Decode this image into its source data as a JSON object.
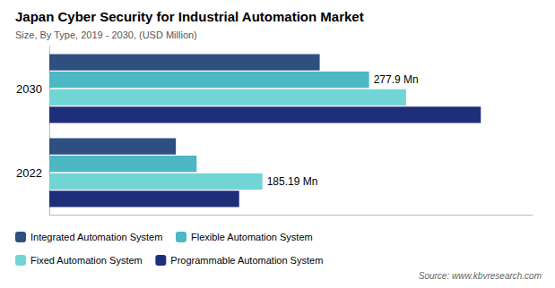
{
  "chart_data": {
    "type": "bar",
    "orientation": "horizontal",
    "title": "Japan Cyber Security for Industrial Automation Market",
    "subtitle": "Size, By Type, 2019 - 2030, (USD Million)",
    "source": "Source: www.kbvresearch.com",
    "categories": [
      "2030",
      "2022"
    ],
    "series": [
      {
        "name": "Integrated Automation System",
        "color": "#2e5080",
        "values": [
          235,
          110
        ]
      },
      {
        "name": "Flexible Automation System",
        "color": "#4cb8c4",
        "values": [
          277.9,
          128
        ]
      },
      {
        "name": "Fixed Automation System",
        "color": "#72d5d5",
        "values": [
          310,
          185.19
        ]
      },
      {
        "name": "Programmable Automation System",
        "color": "#1e2f7a",
        "values": [
          375,
          165
        ]
      }
    ],
    "annotations": [
      {
        "text": "277.9 Mn",
        "category": "2030",
        "series": "Flexible Automation System",
        "value": 277.9
      },
      {
        "text": "185.19 Mn",
        "category": "2022",
        "series": "Fixed Automation System",
        "value": 185.19
      }
    ],
    "xlim": [
      0,
      420
    ],
    "grid": false,
    "legend": "bottom",
    "tick_labels": "y"
  }
}
